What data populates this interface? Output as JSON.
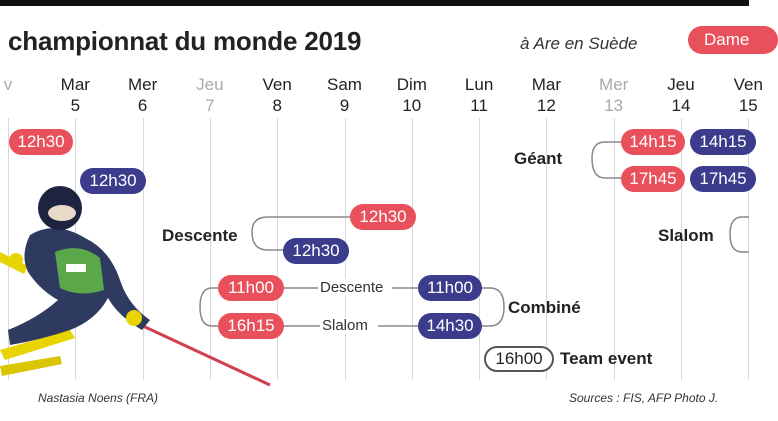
{
  "header": {
    "title": "championnat du monde 2019",
    "subtitle": "à Are en Suède",
    "legend_label": "Dame"
  },
  "days": [
    {
      "name": "v",
      "num": "",
      "muted": true
    },
    {
      "name": "Mar",
      "num": "5",
      "muted": false
    },
    {
      "name": "Mer",
      "num": "6",
      "muted": false
    },
    {
      "name": "Jeu",
      "num": "7",
      "muted": true
    },
    {
      "name": "Ven",
      "num": "8",
      "muted": false
    },
    {
      "name": "Sam",
      "num": "9",
      "muted": false
    },
    {
      "name": "Dim",
      "num": "10",
      "muted": false
    },
    {
      "name": "Lun",
      "num": "11",
      "muted": false
    },
    {
      "name": "Mar",
      "num": "12",
      "muted": false
    },
    {
      "name": "Mer",
      "num": "13",
      "muted": true
    },
    {
      "name": "Jeu",
      "num": "14",
      "muted": false
    },
    {
      "name": "Ven",
      "num": "15",
      "muted": false
    }
  ],
  "events": {
    "top_red": "12h30",
    "top_blue": "12h30",
    "descente_label": "Descente",
    "descente_red": "12h30",
    "descente_blue": "12h30",
    "geant_label": "Géant",
    "geant_red_1": "14h15",
    "geant_blue_1": "14h15",
    "geant_red_2": "17h45",
    "geant_blue_2": "17h45",
    "slalom_label": "Slalom",
    "combine_label": "Combiné",
    "combine_descente_label": "Descente",
    "combine_slalom_label": "Slalom",
    "combine_red_1": "11h00",
    "combine_blue_1": "11h00",
    "combine_red_2": "16h15",
    "combine_blue_2": "14h30",
    "team_time": "16h00",
    "team_label": "Team event"
  },
  "captions": {
    "photo_caption": "Nastasia Noens (FRA)",
    "sources": "Sources : FIS, AFP Photo J."
  },
  "colors": {
    "women": "#e8505b",
    "men": "#3b3c8c",
    "grid": "#d8d8d8"
  }
}
